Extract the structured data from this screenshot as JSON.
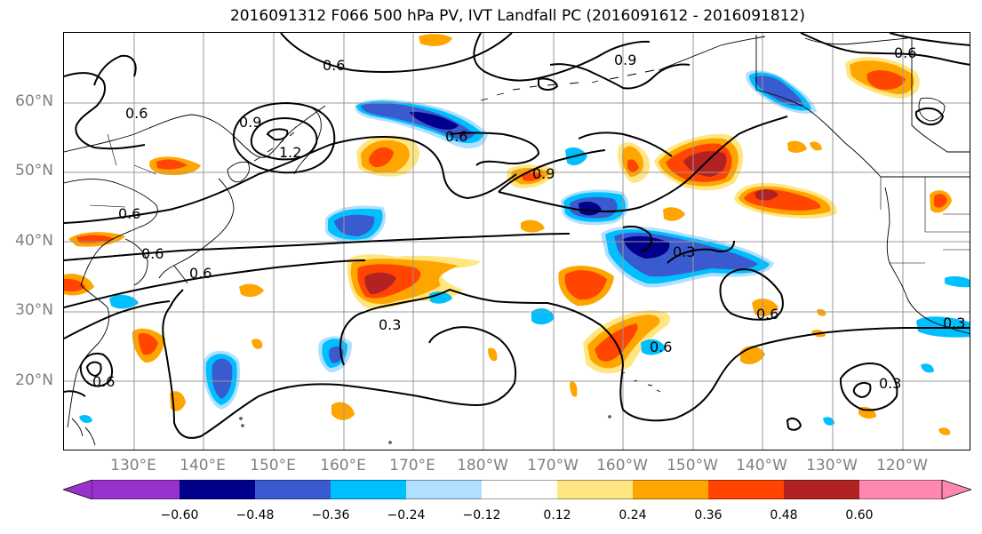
{
  "title": "2016091312 F066 500 hPa PV, IVT Landfall PC (2016091612 - 2016091812)",
  "lat_labels": [
    "60°N",
    "50°N",
    "40°N",
    "30°N",
    "20°N"
  ],
  "lon_labels": [
    "130°E",
    "140°E",
    "150°E",
    "160°E",
    "170°E",
    "180°W",
    "170°W",
    "160°W",
    "150°W",
    "140°W",
    "130°W",
    "120°W"
  ],
  "colorbar": {
    "ticks": [
      "−0.60",
      "−0.48",
      "−0.36",
      "−0.24",
      "−0.12",
      "0.12",
      "0.24",
      "0.36",
      "0.48",
      "0.60"
    ],
    "colors": {
      "under": "#9932cc",
      "bins": [
        "#00008b",
        "#3a5bd0",
        "#00bfff",
        "#b0e0ff",
        "#ffffff",
        "#ffe680",
        "#ffa500",
        "#ff4500",
        "#b22222"
      ],
      "over": "#ff88b0"
    }
  },
  "contour_labels": [
    "0.6",
    "0.9",
    "0.6",
    "0.9",
    "1.2",
    "0.6",
    "0.6",
    "0.9",
    "0.6",
    "0.6",
    "0.6",
    "0.3",
    "0.3",
    "0.6",
    "0.6",
    "0.3",
    "0.3",
    "0.6"
  ]
}
